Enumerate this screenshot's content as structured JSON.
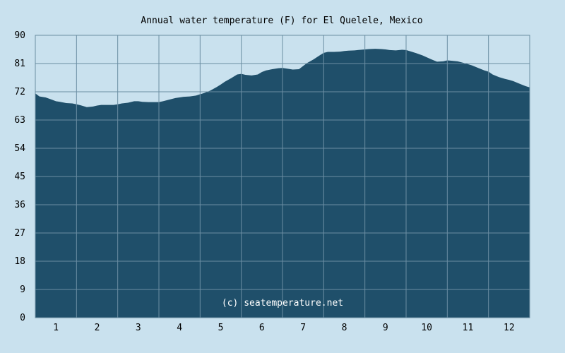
{
  "chart_data": {
    "type": "area",
    "title": "Annual water temperature (F) for El Quelele, Mexico",
    "credit": "(c) seatemperature.net",
    "xlabel": "",
    "ylabel": "",
    "x_categories": [
      "1",
      "2",
      "3",
      "4",
      "5",
      "6",
      "7",
      "8",
      "9",
      "10",
      "11",
      "12"
    ],
    "y_ticks": [
      "0",
      "9",
      "18",
      "27",
      "36",
      "45",
      "54",
      "63",
      "72",
      "81",
      "90"
    ],
    "ylim": [
      0,
      90
    ],
    "xlim": [
      0.5,
      12.5
    ],
    "grid": true,
    "colors": {
      "background": "#c9e1ee",
      "fill": "#1f4f6a",
      "grid": "#6b8ea3",
      "axis": "#6b8ea3"
    },
    "series": [
      {
        "x": [
          0.5,
          0.6,
          0.75,
          0.9,
          1.0,
          1.1,
          1.25,
          1.4,
          1.5,
          1.6,
          1.75,
          1.9,
          2.0,
          2.1,
          2.25,
          2.4,
          2.5,
          2.6,
          2.75,
          2.9,
          3.0,
          3.1,
          3.25,
          3.4,
          3.5,
          3.6,
          3.75,
          3.9,
          4.0,
          4.1,
          4.25,
          4.4,
          4.5,
          4.6,
          4.75,
          4.9,
          5.0,
          5.1,
          5.25,
          5.4,
          5.5,
          5.6,
          5.75,
          5.9,
          6.0,
          6.1,
          6.25,
          6.4,
          6.5,
          6.6,
          6.75,
          6.9,
          7.0,
          7.1,
          7.25,
          7.4,
          7.5,
          7.6,
          7.75,
          7.9,
          8.0,
          8.1,
          8.25,
          8.4,
          8.5,
          8.6,
          8.75,
          8.9,
          9.0,
          9.1,
          9.25,
          9.4,
          9.5,
          9.6,
          9.75,
          9.9,
          10.0,
          10.1,
          10.25,
          10.4,
          10.5,
          10.6,
          10.75,
          10.9,
          11.0,
          11.1,
          11.25,
          11.4,
          11.5,
          11.6,
          11.75,
          11.9,
          12.0,
          12.1,
          12.25,
          12.4,
          12.5
        ],
        "y": [
          71.5,
          70.5,
          70.2,
          69.5,
          69.0,
          68.8,
          68.4,
          68.3,
          68.0,
          67.7,
          67.1,
          67.3,
          67.6,
          67.8,
          67.8,
          67.8,
          68.0,
          68.3,
          68.5,
          69.0,
          69.0,
          68.8,
          68.7,
          68.7,
          68.7,
          69.0,
          69.5,
          70.0,
          70.2,
          70.4,
          70.5,
          70.8,
          71.2,
          71.6,
          72.4,
          73.5,
          74.3,
          75.2,
          76.3,
          77.5,
          77.7,
          77.4,
          77.2,
          77.5,
          78.3,
          78.8,
          79.2,
          79.5,
          79.6,
          79.4,
          79.1,
          79.2,
          80.2,
          81.2,
          82.3,
          83.6,
          84.4,
          84.7,
          84.7,
          84.8,
          85.0,
          85.1,
          85.2,
          85.4,
          85.5,
          85.6,
          85.7,
          85.6,
          85.5,
          85.3,
          85.2,
          85.4,
          85.3,
          84.9,
          84.3,
          83.6,
          83.0,
          82.4,
          81.6,
          81.7,
          82.0,
          81.9,
          81.7,
          81.2,
          80.8,
          80.4,
          79.6,
          78.8,
          78.4,
          77.5,
          76.7,
          76.1,
          75.8,
          75.4,
          74.6,
          73.8,
          73.4
        ]
      }
    ]
  }
}
